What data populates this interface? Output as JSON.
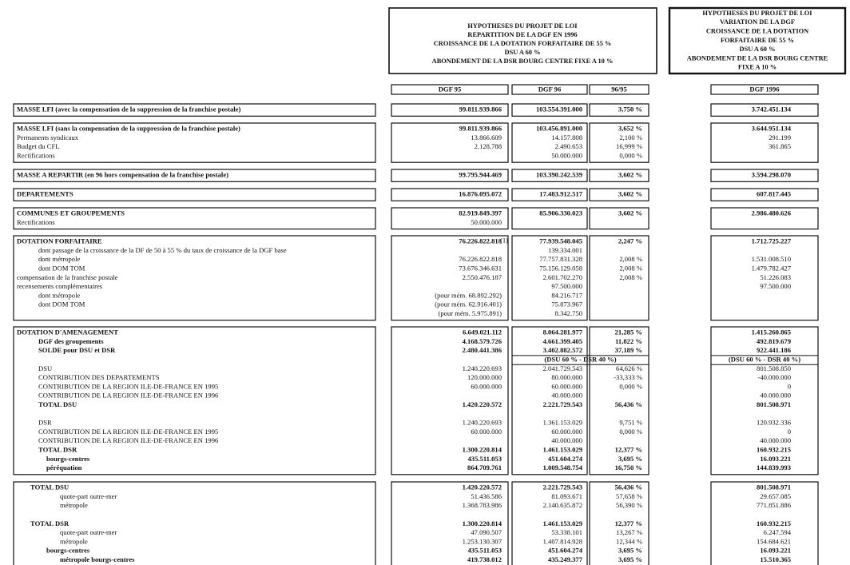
{
  "header": {
    "box1": [
      "HYPOTHESES DU PROJET DE LOI",
      "REPARTITION DE LA DGF EN 1996",
      "CROISSANCE DE LA DOTATION FORFAITAIRE DE 55 %",
      "DSU A 60 %",
      "ABONDEMENT DE LA DSR BOURG CENTRE FIXE A 10 %"
    ],
    "box2": [
      "HYPOTHESES DU PROJET DE LOI",
      "VARIATION DE LA DGF",
      "CROISSANCE DE LA DOTATION",
      "FORFAITAIRE DE 55 %",
      "DSU A 60 %",
      "ABONDEMENT DE LA DSR BOURG CENTRE",
      "FIXE A 10 %"
    ]
  },
  "columns": [
    "DGF 95",
    "DGF 96",
    "96/95",
    "DGF 1996"
  ],
  "sections": [
    {
      "rows": [
        {
          "label": "MASSE LFI (avec la compensation de la suppression de la franchise postale)",
          "style": "bold",
          "cells": [
            "99.811.939.866",
            "103.554.391.000",
            "3,750 %",
            "3.742.451.134"
          ]
        }
      ]
    },
    {
      "rows": [
        {
          "label": "MASSE LFI (sans la compensation de la suppression de la franchise postale)",
          "style": "bold",
          "cells": [
            "99.811.939.866",
            "103.456.891.000",
            "3,652 %",
            "3.644.951.134"
          ]
        },
        {
          "label": "Permanents syndicaux",
          "style": "plain",
          "cells": [
            "13.866.609",
            "14.157.808",
            "2,100 %",
            "291.199"
          ]
        },
        {
          "label": "Budget du CFL",
          "style": "plain",
          "cells": [
            "2.128.788",
            "2.490.653",
            "16,999 %",
            "361.865"
          ]
        },
        {
          "label": "Rectifications",
          "style": "plain",
          "cells": [
            null,
            "50.000.000",
            "0,000 %",
            null
          ]
        }
      ]
    },
    {
      "rows": [
        {
          "label": "MASSE A REPARTIR (en 96 hors compensation de la franchise postale)",
          "style": "bold",
          "cells": [
            "99.795.944.469",
            "103.390.242.539",
            "3,602 %",
            "3.594.298.070"
          ]
        }
      ]
    },
    {
      "rows": [
        {
          "label": "DEPARTEMENTS",
          "style": "bold",
          "cells": [
            "16.876.095.072",
            "17.483.912.517",
            "3,602 %",
            "607.817.445"
          ]
        }
      ]
    },
    {
      "rows": [
        {
          "label": "COMMUNES ET GROUPEMENTS",
          "style": "bold",
          "cells": [
            "82.919.849.397",
            "85.906.330.023",
            "3,602 %",
            "2.986.480.626"
          ]
        },
        {
          "label": "Rectifications",
          "style": "plain",
          "cells": [
            "50.000.000",
            null,
            null,
            null
          ]
        }
      ]
    },
    {
      "rows": [
        {
          "label": "DOTATION FORFAITAIRE",
          "style": "bold",
          "note": "(1)",
          "cells": [
            "76.226.822.818",
            "77.939.548.045",
            "2,247 %",
            "1.712.725.227"
          ]
        },
        {
          "label": "dont passage de la croissance de la DF de 50 à 55 % du taux de croissance de la DGF base",
          "style": "indent",
          "cells": [
            null,
            "139.334.001",
            null,
            null
          ]
        },
        {
          "label": "dont métropole",
          "style": "indent",
          "cells": [
            "76.226.822.818",
            "77.757.831.328",
            "2,008 %",
            "1.531.008.510"
          ]
        },
        {
          "label": "dont DOM TOM",
          "style": "indent",
          "cells": [
            "73.676.346.631",
            "75.156.129.058",
            "2,008 %",
            "1.479.782.427"
          ]
        },
        {
          "label": "compensation de la franchise postale",
          "style": "plain",
          "cells": [
            "2.550.476.187",
            "2.601.702.270",
            "2,008 %",
            "51.226.083"
          ]
        },
        {
          "label": "recensements complémentaires",
          "style": "plain",
          "cells": [
            null,
            "97.500.000",
            null,
            "97.500.000"
          ]
        },
        {
          "label": "dont métropole",
          "style": "indent",
          "cells": [
            "(pour mém. 68.892.292)",
            "84.216.717",
            null,
            null
          ]
        },
        {
          "label": "dont DOM TOM",
          "style": "indent",
          "cells": [
            "(pour mém. 62.916.401)",
            "75.873.967",
            null,
            null
          ]
        },
        {
          "label": null,
          "style": "plain",
          "cells": [
            "(pour mém. 5.975.891)",
            "8.342.750",
            null,
            null
          ]
        }
      ]
    },
    {
      "rows": [
        {
          "label": "DOTATION D'AMENAGEMENT",
          "style": "bold",
          "cells": [
            "6.649.021.112",
            "8.064.281.977",
            "21,285 %",
            "1.415.260.865"
          ]
        },
        {
          "label": "DGF des groupements",
          "style": "mid bold",
          "cells": [
            "4.168.579.726",
            "4.661.399.405",
            "11,822 %",
            "492.819.679"
          ]
        },
        {
          "label": "SOLDE pour DSU et DSR",
          "style": "mid bold",
          "cells": [
            "2.480.441.386",
            "3.402.882.572",
            "37,189 %",
            "922.441.186"
          ]
        },
        {
          "label": null,
          "style": "center",
          "cells": [
            null,
            "(DSU 60 % - DSR 40 %)",
            null,
            "(DSU 60 % - DSR 40 %)"
          ]
        },
        {
          "label": "DSU",
          "style": "mid",
          "cells": [
            "1.240.220.693",
            "2.041.729.543",
            "64,626 %",
            "801.508.850"
          ]
        },
        {
          "label": "CONTRIBUTION DES DEPARTEMENTS",
          "style": "indent",
          "cells": [
            "120.000.000",
            "80.000.000",
            "-33,333 %",
            "-40.000.000"
          ]
        },
        {
          "label": "CONTRIBUTION DE LA REGION ILE-DE-FRANCE EN 1995",
          "style": "indent",
          "cells": [
            "60.000.000",
            "60.000.000",
            "0,000 %",
            "0"
          ]
        },
        {
          "label": "CONTRIBUTION DE LA REGION ILE-DE-FRANCE EN 1996",
          "style": "indent",
          "cells": [
            null,
            "40.000.000",
            null,
            "40.000.000"
          ]
        },
        {
          "label": "TOTAL DSU",
          "style": "indent bold",
          "cells": [
            "1.420.220.572",
            "2.221.729.543",
            "56,436 %",
            "801.508.971"
          ]
        },
        null,
        {
          "label": "DSR",
          "style": "mid",
          "cells": [
            "1.240.220.693",
            "1.361.153.029",
            "9,751 %",
            "120.932.336"
          ]
        },
        {
          "label": "CONTRIBUTION DE LA REGION ILE-DE-FRANCE EN 1995",
          "style": "indent",
          "cells": [
            "60.000.000",
            "60.000.000",
            "0,000 %",
            "0"
          ]
        },
        {
          "label": "CONTRIBUTION DE LA REGION ILE-DE-FRANCE EN 1996",
          "style": "indent",
          "cells": [
            null,
            "40.000.000",
            null,
            "40.000.000"
          ]
        },
        {
          "label": "TOTAL DSR",
          "style": "indent bold",
          "cells": [
            "1.300.220.814",
            "1.461.153.029",
            "12,377 %",
            "160.932.215"
          ]
        },
        {
          "label": "bourgs-centres",
          "style": "deep bold",
          "cells": [
            "435.511.053",
            "451.604.274",
            "3,695 %",
            "16.093.221"
          ]
        },
        {
          "label": "péréquation",
          "style": "deep bold",
          "cells": [
            "864.709.761",
            "1.009.548.754",
            "16,750 %",
            "144.839.993"
          ]
        }
      ]
    },
    {
      "rows": [
        {
          "label": "TOTAL DSU",
          "style": "top bold",
          "cells": [
            "1.420.220.572",
            "2.221.729.543",
            "56,436 %",
            "801.508.971"
          ]
        },
        {
          "label": "quote-part outre-mer",
          "style": "far",
          "cells": [
            "51.436.586",
            "81.093.671",
            "57,658 %",
            "29.657.085"
          ]
        },
        {
          "label": "métropole",
          "style": "far",
          "cells": [
            "1.368.783.986",
            "2.140.635.872",
            "56,390 %",
            "771.851.886"
          ]
        },
        null,
        {
          "label": "TOTAL DSR",
          "style": "top bold",
          "cells": [
            "1.300.220.814",
            "1.461.153.029",
            "12,377 %",
            "160.932.215"
          ]
        },
        {
          "label": "quote-part outre-mer",
          "style": "far",
          "cells": [
            "47.090.507",
            "53.338.101",
            "13,267 %",
            "6.247.594"
          ]
        },
        {
          "label": "métropole",
          "style": "far",
          "cells": [
            "1.253.130.307",
            "1.407.814.928",
            "12,344 %",
            "154.684.621"
          ]
        },
        {
          "label": "bourgs-centres",
          "style": "deep bold",
          "cells": [
            "435.511.053",
            "451.604.274",
            "3,695 %",
            "16.093.221"
          ]
        },
        {
          "label": "métropole bourgs-centres",
          "style": "far bold",
          "cells": [
            "419.738.012",
            "435.249.377",
            "3,695 %",
            "15.510.365"
          ]
        }
      ]
    }
  ]
}
